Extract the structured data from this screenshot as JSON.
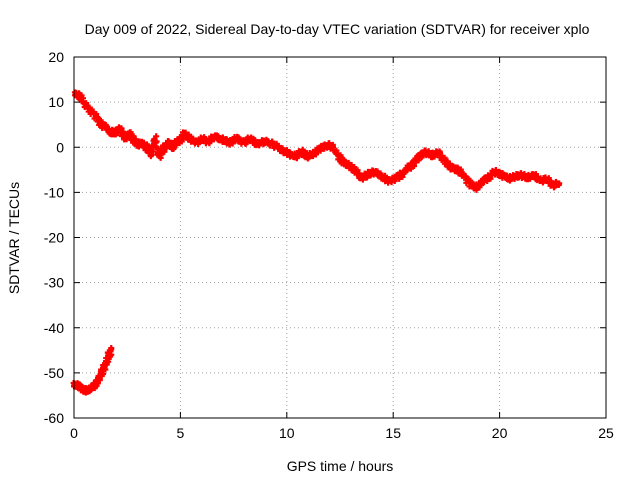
{
  "chart_data": {
    "type": "scatter",
    "title": "Day 009 of 2022, Sidereal Day-to-day VTEC variation (SDTVAR) for receiver xplo",
    "xlabel": "GPS time / hours",
    "ylabel": "SDTVAR / TECUs",
    "xlim": [
      0,
      25
    ],
    "ylim": [
      -60,
      20
    ],
    "x_ticks": [
      0,
      5,
      10,
      15,
      20,
      25
    ],
    "y_ticks": [
      -60,
      -50,
      -40,
      -30,
      -20,
      -10,
      0,
      10,
      20
    ],
    "grid": true,
    "series": [
      {
        "name": "main",
        "color": "#ff0000",
        "points": [
          [
            0.05,
            12.0
          ],
          [
            0.3,
            11.0
          ],
          [
            0.6,
            9.0
          ],
          [
            1.0,
            7.0
          ],
          [
            1.3,
            5.0
          ],
          [
            1.6,
            4.0
          ],
          [
            1.8,
            3.0
          ],
          [
            2.0,
            3.5
          ],
          [
            2.2,
            4.0
          ],
          [
            2.4,
            2.0
          ],
          [
            2.6,
            3.0
          ],
          [
            2.8,
            1.5
          ],
          [
            3.0,
            0.5
          ],
          [
            3.2,
            1.0
          ],
          [
            3.4,
            0.0
          ],
          [
            3.6,
            -1.5
          ],
          [
            3.8,
            2.0
          ],
          [
            4.0,
            -2.0
          ],
          [
            4.2,
            -0.5
          ],
          [
            4.4,
            1.0
          ],
          [
            4.6,
            0.0
          ],
          [
            4.8,
            1.0
          ],
          [
            5.0,
            1.5
          ],
          [
            5.2,
            3.0
          ],
          [
            5.4,
            2.0
          ],
          [
            5.7,
            1.0
          ],
          [
            6.0,
            2.0
          ],
          [
            6.3,
            1.0
          ],
          [
            6.6,
            2.5
          ],
          [
            7.0,
            1.5
          ],
          [
            7.3,
            1.0
          ],
          [
            7.6,
            2.0
          ],
          [
            8.0,
            1.0
          ],
          [
            8.3,
            2.0
          ],
          [
            8.6,
            0.5
          ],
          [
            9.0,
            1.5
          ],
          [
            9.4,
            0.5
          ],
          [
            9.8,
            -0.5
          ],
          [
            10.1,
            -1.5
          ],
          [
            10.4,
            -2.0
          ],
          [
            10.7,
            -1.0
          ],
          [
            11.0,
            -2.0
          ],
          [
            11.3,
            -1.5
          ],
          [
            11.6,
            0.0
          ],
          [
            12.0,
            0.5
          ],
          [
            12.3,
            -1.0
          ],
          [
            12.6,
            -3.0
          ],
          [
            12.9,
            -4.0
          ],
          [
            13.2,
            -5.0
          ],
          [
            13.5,
            -7.0
          ],
          [
            13.8,
            -6.0
          ],
          [
            14.1,
            -5.5
          ],
          [
            14.4,
            -6.0
          ],
          [
            14.7,
            -7.5
          ],
          [
            15.0,
            -7.0
          ],
          [
            15.3,
            -6.5
          ],
          [
            15.6,
            -5.0
          ],
          [
            15.9,
            -4.0
          ],
          [
            16.2,
            -2.0
          ],
          [
            16.5,
            -1.0
          ],
          [
            16.8,
            -2.0
          ],
          [
            17.1,
            -1.0
          ],
          [
            17.4,
            -3.0
          ],
          [
            17.7,
            -4.5
          ],
          [
            18.0,
            -5.0
          ],
          [
            18.3,
            -6.0
          ],
          [
            18.6,
            -8.0
          ],
          [
            18.9,
            -9.0
          ],
          [
            19.2,
            -7.5
          ],
          [
            19.5,
            -6.5
          ],
          [
            19.8,
            -5.5
          ],
          [
            20.1,
            -6.0
          ],
          [
            20.4,
            -7.0
          ],
          [
            20.7,
            -6.5
          ],
          [
            21.0,
            -6.0
          ],
          [
            21.3,
            -7.0
          ],
          [
            21.6,
            -6.0
          ],
          [
            21.9,
            -7.5
          ],
          [
            22.2,
            -7.0
          ],
          [
            22.5,
            -8.5
          ],
          [
            22.8,
            -8.0
          ]
        ]
      },
      {
        "name": "early",
        "color": "#ff0000",
        "points": [
          [
            0.0,
            -52.5
          ],
          [
            0.2,
            -53.0
          ],
          [
            0.4,
            -53.5
          ],
          [
            0.6,
            -54.0
          ],
          [
            0.8,
            -53.5
          ],
          [
            1.0,
            -52.5
          ],
          [
            1.2,
            -51.0
          ],
          [
            1.4,
            -49.0
          ],
          [
            1.6,
            -47.0
          ],
          [
            1.75,
            -44.5
          ]
        ]
      }
    ]
  }
}
